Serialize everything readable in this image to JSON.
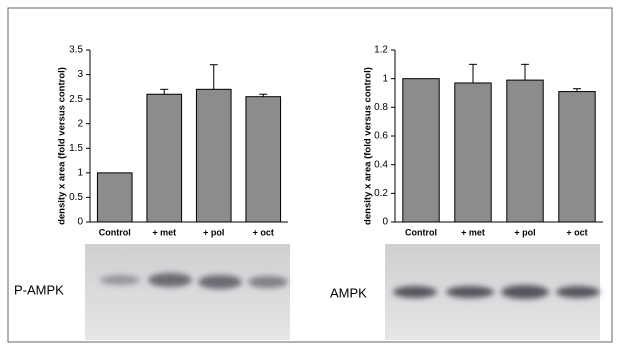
{
  "chart_data": [
    {
      "type": "bar",
      "y_label": "density x area (fold versus control)",
      "blot_label": "P-AMPK",
      "categories": [
        "Control",
        "+ met",
        "+ pol",
        "+ oct"
      ],
      "values": [
        1,
        2.6,
        2.7,
        2.55
      ],
      "errors": [
        null,
        0.1,
        0.5,
        0.05
      ],
      "color": "#8c8c8c",
      "ylim": [
        0,
        3.5
      ],
      "yticks": [
        0,
        0.5,
        1,
        1.5,
        2,
        2.5,
        3,
        3.5
      ]
    },
    {
      "type": "bar",
      "y_label": "density x area (fold versus control)",
      "blot_label": "AMPK",
      "categories": [
        "Control",
        "+ met",
        "+ pol",
        "+ oct"
      ],
      "values": [
        1,
        0.97,
        0.99,
        0.91
      ],
      "errors": [
        null,
        0.13,
        0.11,
        0.02
      ],
      "color": "#8c8c8c",
      "ylim": [
        0,
        1.2
      ],
      "yticks": [
        0,
        0.2,
        0.4,
        0.6,
        0.8,
        1,
        1.2
      ]
    }
  ]
}
